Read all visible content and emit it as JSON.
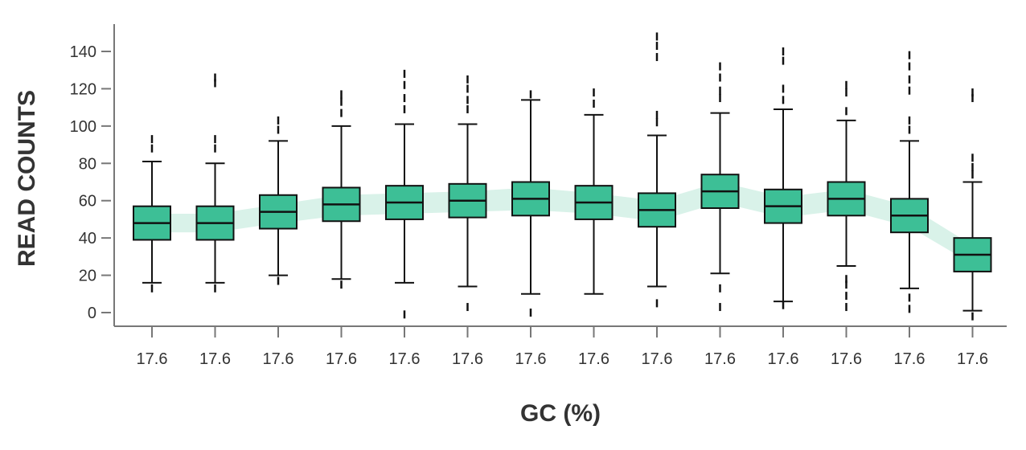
{
  "chart_data": {
    "type": "boxplot",
    "title": "",
    "xlabel": "GC (%)",
    "ylabel": "READ COUNTS",
    "ylim": [
      -6,
      154
    ],
    "yticks": [
      0,
      20,
      40,
      60,
      80,
      100,
      120,
      140
    ],
    "grid": false,
    "legend": "none",
    "colors": {
      "box_fill": "#3dbf96",
      "box_stroke": "#111111",
      "trend_band": "#d9f2e9",
      "axis": "#777777"
    },
    "trend_band": {
      "lower": [
        43,
        43,
        48,
        52,
        53,
        54,
        55,
        53,
        49,
        59,
        51,
        55,
        46,
        26
      ],
      "upper": [
        53,
        53,
        58,
        63,
        64,
        65,
        67,
        64,
        60,
        70,
        62,
        66,
        57,
        36
      ]
    },
    "categories": [
      "17.6",
      "17.6",
      "17.6",
      "17.6",
      "17.6",
      "17.6",
      "17.6",
      "17.6",
      "17.6",
      "17.6",
      "17.6",
      "17.6",
      "17.6",
      "17.6"
    ],
    "boxes": [
      {
        "whisker_low": 16,
        "q1": 39,
        "median": 48,
        "q3": 57,
        "whisker_high": 81,
        "outliers": [
          13,
          88,
          93
        ]
      },
      {
        "whisker_low": 16,
        "q1": 39,
        "median": 48,
        "q3": 57,
        "whisker_high": 80,
        "outliers": [
          13,
          88,
          93,
          123,
          126
        ]
      },
      {
        "whisker_low": 20,
        "q1": 45,
        "median": 54,
        "q3": 63,
        "whisker_high": 92,
        "outliers": [
          17,
          98,
          103
        ]
      },
      {
        "whisker_low": 18,
        "q1": 49,
        "median": 58,
        "q3": 67,
        "whisker_high": 100,
        "outliers": [
          15,
          107,
          113,
          117
        ]
      },
      {
        "whisker_low": 16,
        "q1": 50,
        "median": 59,
        "q3": 68,
        "whisker_high": 101,
        "outliers": [
          -1,
          109,
          115,
          122,
          128
        ]
      },
      {
        "whisker_low": 14,
        "q1": 51,
        "median": 60,
        "q3": 69,
        "whisker_high": 101,
        "outliers": [
          3,
          109,
          114,
          120,
          125
        ]
      },
      {
        "whisker_low": 10,
        "q1": 52,
        "median": 61,
        "q3": 70,
        "whisker_high": 114,
        "outliers": [
          0,
          117
        ]
      },
      {
        "whisker_low": 10,
        "q1": 50,
        "median": 59,
        "q3": 68,
        "whisker_high": 106,
        "outliers": [
          112,
          118
        ]
      },
      {
        "whisker_low": 14,
        "q1": 46,
        "median": 55,
        "q3": 64,
        "whisker_high": 95,
        "outliers": [
          5,
          102,
          106,
          137,
          143,
          148
        ]
      },
      {
        "whisker_low": 21,
        "q1": 56,
        "median": 65,
        "q3": 74,
        "whisker_high": 107,
        "outliers": [
          3,
          13,
          115,
          119,
          126,
          132
        ]
      },
      {
        "whisker_low": 6,
        "q1": 48,
        "median": 57,
        "q3": 66,
        "whisker_high": 109,
        "outliers": [
          4,
          114,
          120,
          135,
          140
        ]
      },
      {
        "whisker_low": 25,
        "q1": 52,
        "median": 61,
        "q3": 70,
        "whisker_high": 103,
        "outliers": [
          3,
          9,
          15,
          18,
          108,
          118,
          122
        ]
      },
      {
        "whisker_low": 13,
        "q1": 43,
        "median": 52,
        "q3": 61,
        "whisker_high": 92,
        "outliers": [
          2,
          8,
          98,
          103,
          119,
          125,
          132,
          138
        ]
      },
      {
        "whisker_low": 1,
        "q1": 22,
        "median": 31,
        "q3": 40,
        "whisker_high": 70,
        "outliers": [
          -2,
          74,
          78,
          83,
          115,
          118
        ]
      }
    ]
  }
}
